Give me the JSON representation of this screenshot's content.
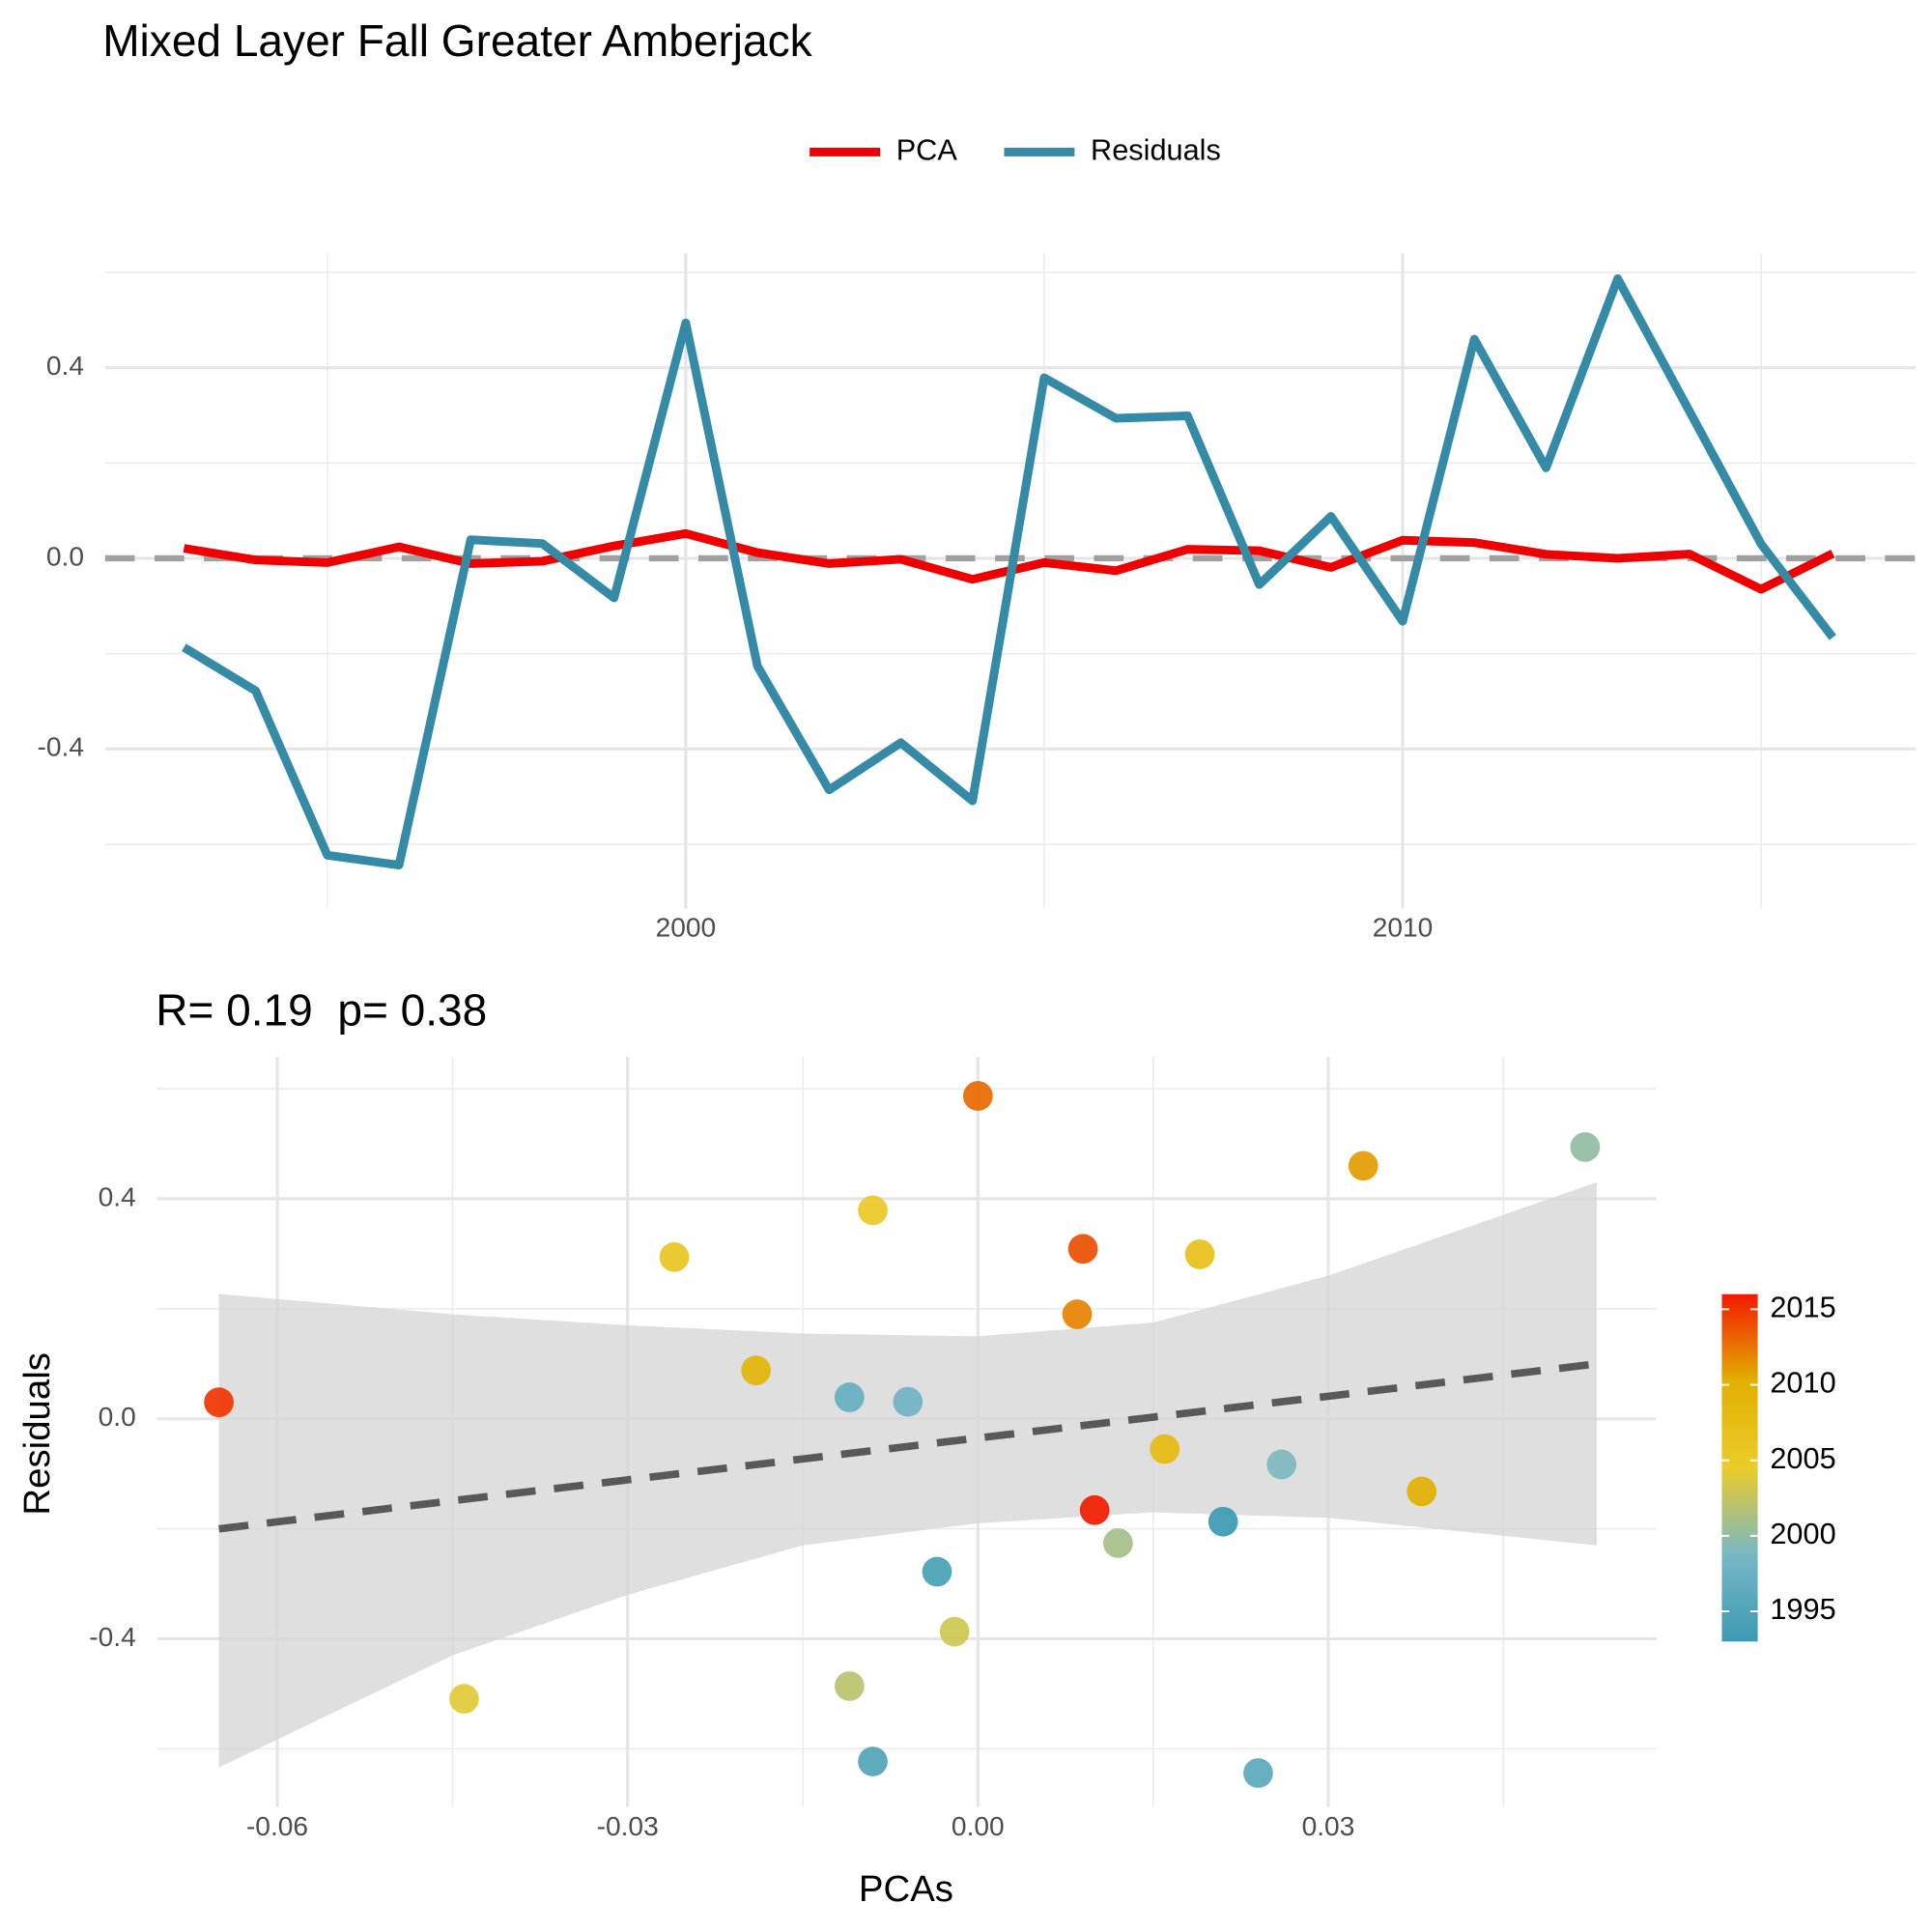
{
  "title": "Mixed Layer Fall Greater Amberjack",
  "chart_data": [
    {
      "type": "line",
      "x": [
        1993,
        1994,
        1995,
        1996,
        1997,
        1998,
        1999,
        2000,
        2001,
        2002,
        2003,
        2004,
        2005,
        2006,
        2007,
        2008,
        2009,
        2010,
        2011,
        2012,
        2013,
        2014,
        2015,
        2016
      ],
      "series": [
        {
          "name": "PCA",
          "color": "#EE0000",
          "values": [
            0.021,
            -0.0035,
            -0.009,
            0.024,
            -0.011,
            -0.006,
            0.026,
            0.052,
            0.012,
            -0.011,
            -0.002,
            -0.044,
            -0.009,
            -0.026,
            0.019,
            0.016,
            -0.019,
            0.038,
            0.033,
            0.0085,
            0.0,
            0.009,
            -0.065,
            0.01
          ]
        },
        {
          "name": "Residuals",
          "color": "#358BA6",
          "values": [
            -0.187,
            -0.278,
            -0.623,
            -0.644,
            0.039,
            0.031,
            -0.083,
            0.494,
            -0.226,
            -0.486,
            -0.387,
            -0.509,
            0.379,
            0.294,
            0.299,
            -0.055,
            0.088,
            -0.132,
            0.46,
            0.19,
            0.587,
            0.309,
            0.03,
            -0.166
          ]
        }
      ],
      "hline": 0,
      "xlim": [
        1991.9,
        2017.16
      ],
      "xticks": [
        2000,
        2010
      ],
      "ylim": [
        -0.735,
        0.64
      ],
      "yticks": [
        -0.4,
        {
          "value": 0,
          "label": "0.0"
        },
        0.4
      ],
      "grid": true,
      "legend": "top"
    },
    {
      "type": "scatter",
      "subtitle": "R= 0.19  p= 0.38",
      "xlabel": "PCAs",
      "ylabel": "Residuals",
      "x": [
        0.021,
        -0.0035,
        -0.009,
        0.024,
        -0.011,
        -0.006,
        0.026,
        0.052,
        0.012,
        -0.011,
        -0.002,
        -0.044,
        -0.009,
        -0.026,
        0.019,
        0.016,
        -0.019,
        0.038,
        0.033,
        0.0085,
        0.0,
        0.009,
        -0.065,
        0.01
      ],
      "y": [
        -0.187,
        -0.278,
        -0.623,
        -0.644,
        0.039,
        0.031,
        -0.083,
        0.494,
        -0.226,
        -0.486,
        -0.387,
        -0.509,
        0.379,
        0.294,
        0.299,
        -0.055,
        0.088,
        -0.132,
        0.46,
        0.19,
        0.587,
        0.309,
        0.03,
        -0.166
      ],
      "color_values": [
        1993,
        1994,
        1995,
        1996,
        1997,
        1998,
        1999,
        2000,
        2001,
        2002,
        2003,
        2004,
        2005,
        2006,
        2007,
        2008,
        2009,
        2010,
        2011,
        2012,
        2013,
        2014,
        2015,
        2016
      ],
      "palette": [
        "#3B9AB2",
        "#78B7C5",
        "#EBCC2A",
        "#E1AF00",
        "#F21A00"
      ],
      "colorlim": [
        1993,
        2016
      ],
      "colorticks": [
        1995,
        2000,
        2005,
        2010,
        2015
      ],
      "fit": {
        "x": [
          -0.065,
          -0.045,
          -0.03,
          -0.015,
          0,
          0.015,
          0.03,
          0.053
        ],
        "y": [
          -0.2,
          -0.149,
          -0.111,
          -0.073,
          -0.035,
          0.003,
          0.041,
          0.1
        ],
        "lower": [
          -0.634,
          -0.43,
          -0.32,
          -0.23,
          -0.19,
          -0.17,
          -0.18,
          -0.23
        ],
        "upper": [
          0.227,
          0.19,
          0.17,
          0.155,
          0.15,
          0.175,
          0.26,
          0.43
        ]
      },
      "xlim": [
        -0.0703,
        0.0581
      ],
      "xticks": [
        -0.06,
        -0.03,
        {
          "value": 0,
          "label": "0.00"
        },
        0.03
      ],
      "ylim": [
        -0.706,
        0.658
      ],
      "yticks": [
        -0.4,
        {
          "value": 0,
          "label": "0.0"
        },
        0.4
      ],
      "grid": true
    }
  ]
}
